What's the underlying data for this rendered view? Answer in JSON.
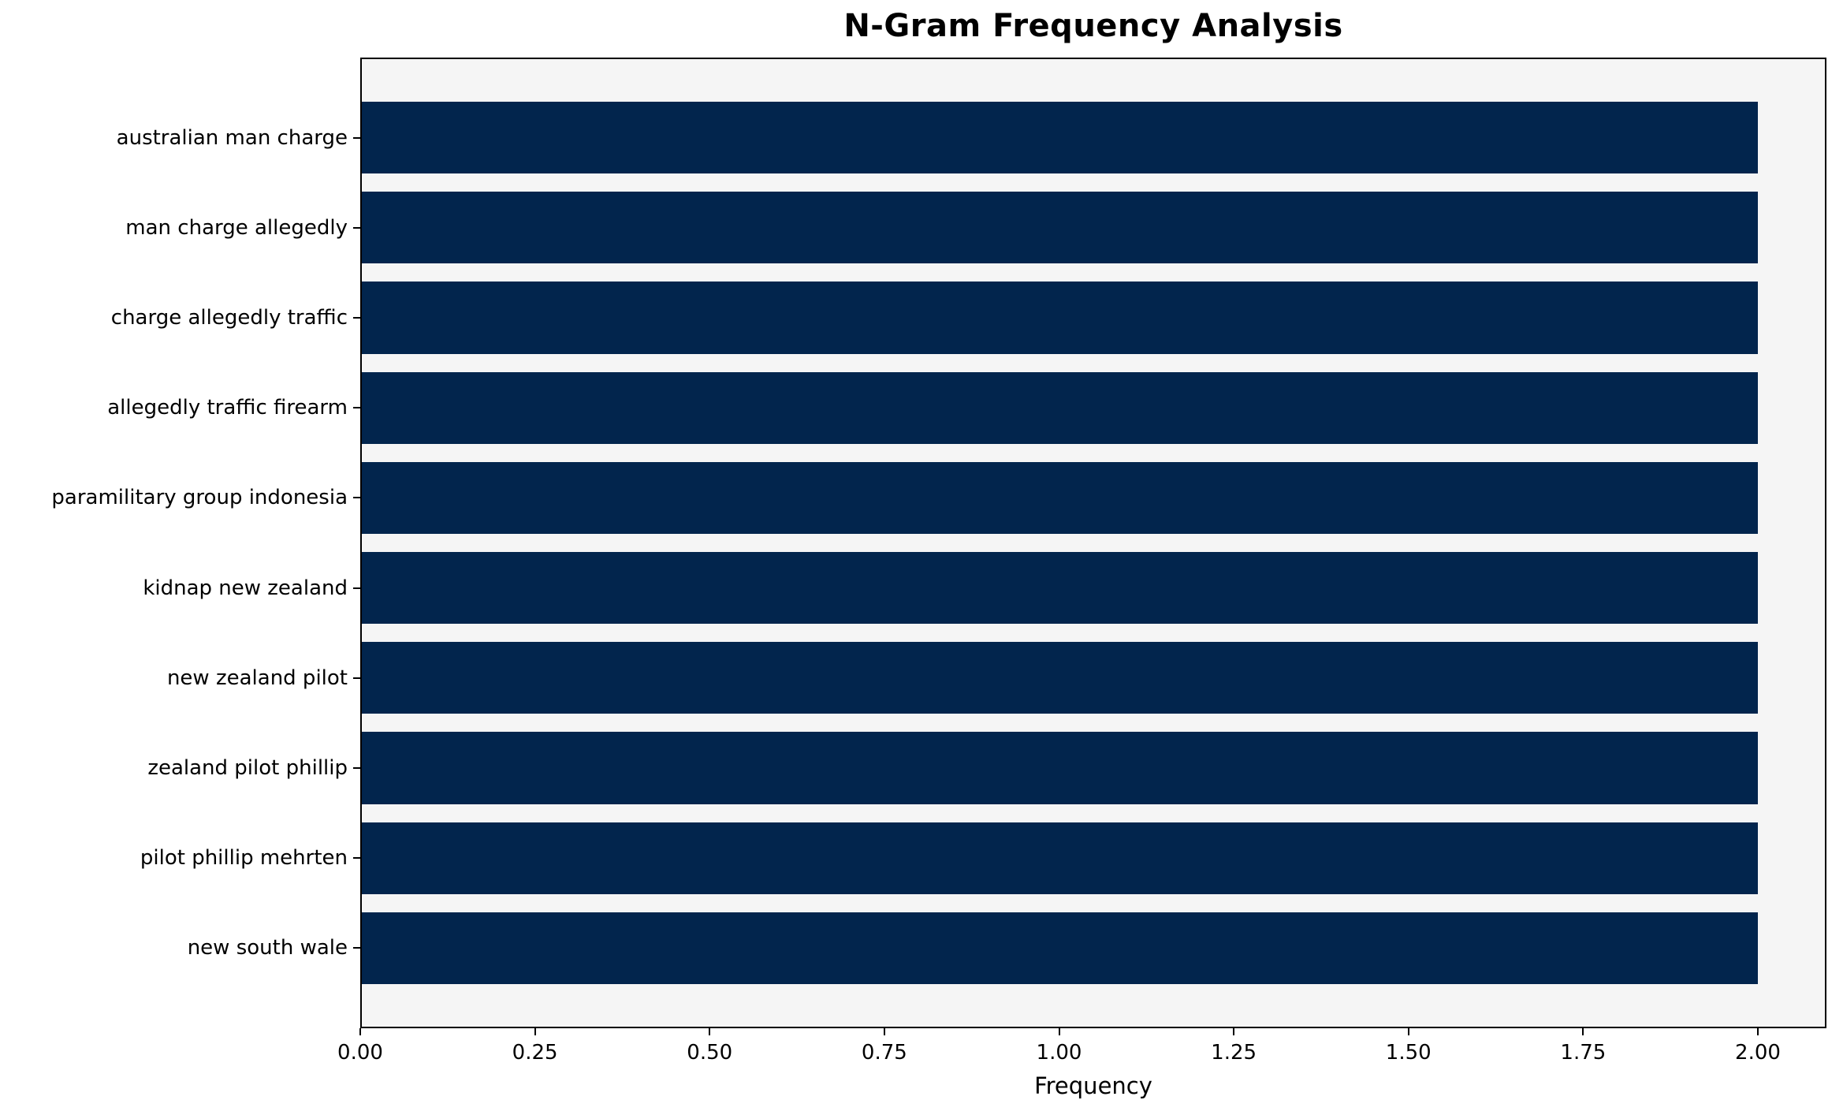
{
  "figure": {
    "title": "N-Gram Frequency Analysis",
    "xlabel": "Frequency"
  },
  "chart_data": {
    "type": "bar",
    "orientation": "horizontal",
    "title": "N-Gram Frequency Analysis",
    "xlabel": "Frequency",
    "ylabel": "",
    "categories": [
      "australian man charge",
      "man charge allegedly",
      "charge allegedly traffic",
      "allegedly traffic firearm",
      "paramilitary group indonesia",
      "kidnap new zealand",
      "new zealand pilot",
      "zealand pilot phillip",
      "pilot phillip mehrten",
      "new south wale"
    ],
    "values": [
      2,
      2,
      2,
      2,
      2,
      2,
      2,
      2,
      2,
      2
    ],
    "xlim": [
      0,
      2.098
    ],
    "xticks": [
      0,
      0.25,
      0.5,
      0.75,
      1.0,
      1.25,
      1.5,
      1.75,
      2.0
    ],
    "xtick_labels": [
      "0.00",
      "0.25",
      "0.50",
      "0.75",
      "1.00",
      "1.25",
      "1.50",
      "1.75",
      "2.00"
    ],
    "grid": false,
    "legend_position": "none",
    "colors": {
      "bar": "#02254d",
      "plot_background": "#f5f5f5",
      "figure_background": "#ffffff",
      "text": "#000000",
      "spine": "#000000"
    }
  }
}
